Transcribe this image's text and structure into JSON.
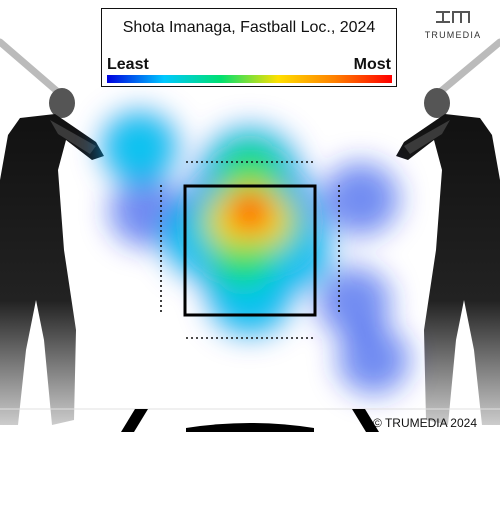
{
  "chart_data": {
    "type": "heatmap",
    "title": "Shota Imanaga, Fastball Loc., 2024",
    "legend": {
      "low_label": "Least",
      "high_label": "Most",
      "colormap": [
        "#0000e0",
        "#00c8ff",
        "#00e070",
        "#ffe000",
        "#ff8000",
        "#ff0000"
      ]
    },
    "peak": {
      "zone_x": 0.5,
      "zone_y": 0.3
    },
    "density_hotspots": [
      {
        "zone_x": 0.5,
        "zone_y": 0.2,
        "weight": 1.0
      },
      {
        "zone_x": 0.38,
        "zone_y": 0.28,
        "weight": 0.75
      },
      {
        "zone_x": 0.62,
        "zone_y": 0.28,
        "weight": 0.7
      },
      {
        "zone_x": 0.5,
        "zone_y": -0.1,
        "weight": 0.55
      },
      {
        "zone_x": 0.45,
        "zone_y": 0.55,
        "weight": 0.55
      },
      {
        "zone_x": 0.15,
        "zone_y": 0.4,
        "weight": 0.35
      },
      {
        "zone_x": 0.8,
        "zone_y": 0.5,
        "weight": 0.35
      },
      {
        "zone_x": 0.5,
        "zone_y": 0.85,
        "weight": 0.35
      },
      {
        "zone_x": -0.35,
        "zone_y": -0.3,
        "weight": 0.25
      },
      {
        "zone_x": 1.35,
        "zone_y": 0.1,
        "weight": 0.2
      },
      {
        "zone_x": -0.3,
        "zone_y": 0.2,
        "weight": 0.15
      },
      {
        "zone_x": 1.3,
        "zone_y": 0.9,
        "weight": 0.15
      },
      {
        "zone_x": 1.45,
        "zone_y": 1.35,
        "weight": 0.12
      }
    ],
    "strike_zone": {
      "shown": true
    },
    "shadow_zone": {
      "shown": true,
      "style": "dotted"
    },
    "grid": false
  },
  "brand": {
    "name": "TRUMEDIA",
    "icon": "trumedia-logo-icon"
  },
  "copyright": "© TRUMEDIA 2024",
  "colors": {
    "strike_zone": "#000000",
    "background": "#ffffff"
  }
}
